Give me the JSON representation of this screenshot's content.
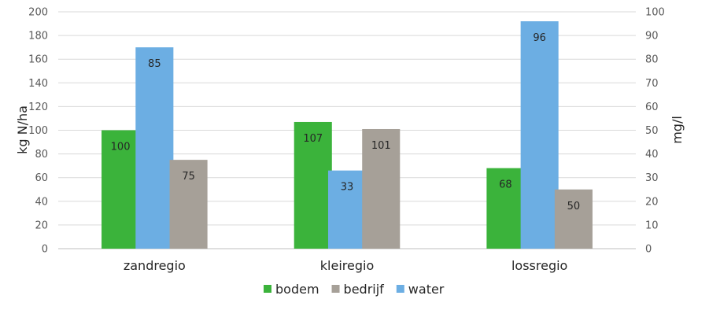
{
  "chart_data": {
    "type": "bar",
    "categories": [
      "zandregio",
      "kleiregio",
      "lossregio"
    ],
    "ylabel_left": "kg N/ha",
    "ylabel_right": "mg/l",
    "ylim_left": [
      0,
      200
    ],
    "ylim_right": [
      0,
      100
    ],
    "yticks_left": [
      "0",
      "20",
      "40",
      "60",
      "80",
      "100",
      "120",
      "140",
      "160",
      "180",
      "200"
    ],
    "yticks_right": [
      "0",
      "10",
      "20",
      "30",
      "40",
      "50",
      "60",
      "70",
      "80",
      "90",
      "100"
    ],
    "grid": true,
    "legend_position": "bottom",
    "series": [
      {
        "name": "bodem",
        "axis": "left",
        "color": "#3bb33b",
        "values": [
          100,
          107,
          68
        ],
        "labels": [
          "100",
          "107",
          "68"
        ]
      },
      {
        "name": "water",
        "axis": "right",
        "color": "#6caee3",
        "values": [
          85,
          33,
          96
        ],
        "labels": [
          "85",
          "33",
          "96"
        ]
      },
      {
        "name": "bedrijf",
        "axis": "left",
        "color": "#a6a098",
        "values": [
          75,
          101,
          50
        ],
        "labels": [
          "75",
          "101",
          "50"
        ]
      }
    ],
    "legend_order": [
      "bodem",
      "bedrijf",
      "water"
    ]
  }
}
